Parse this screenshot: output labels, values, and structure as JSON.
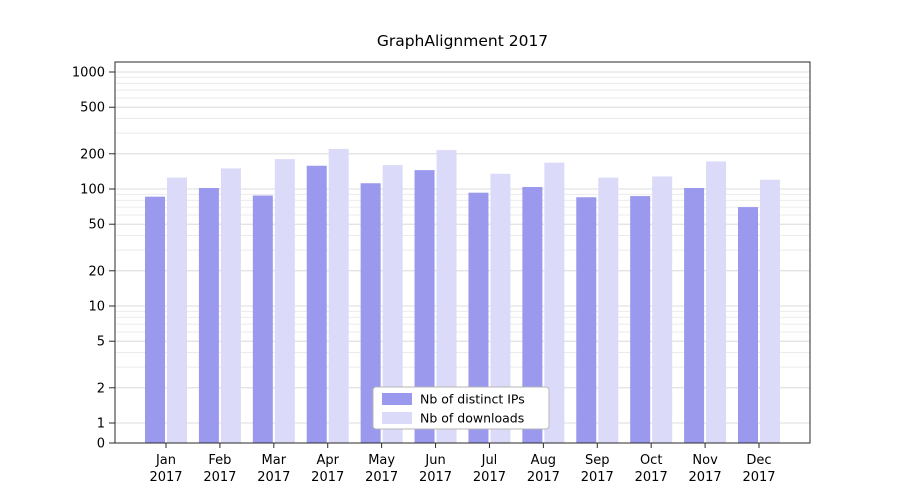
{
  "chart_data": {
    "type": "bar",
    "title": "GraphAlignment 2017",
    "categories": [
      "Jan 2017",
      "Feb 2017",
      "Mar 2017",
      "Apr 2017",
      "May 2017",
      "Jun 2017",
      "Jul 2017",
      "Aug 2017",
      "Sep 2017",
      "Oct 2017",
      "Nov 2017",
      "Dec 2017"
    ],
    "series": [
      {
        "name": "Nb of distinct IPs",
        "color": "#9a99ee",
        "values": [
          86,
          102,
          88,
          158,
          112,
          145,
          93,
          104,
          85,
          87,
          102,
          70
        ]
      },
      {
        "name": "Nb of downloads",
        "color": "#dbdaf8",
        "values": [
          125,
          150,
          180,
          220,
          160,
          215,
          135,
          168,
          125,
          128,
          172,
          120
        ]
      }
    ],
    "yscale": "symlog",
    "yticks": [
      0,
      1,
      2,
      5,
      10,
      20,
      50,
      100,
      200,
      500,
      1000
    ],
    "ylim": [
      0,
      1000
    ],
    "grid": true,
    "legend_position": "lower center",
    "colors": {
      "axis": "#2a2a2a",
      "major_grid": "#dedede",
      "minor_grid": "#ebebeb",
      "legend_border": "#b5b5b5",
      "background": "#ffffff"
    }
  }
}
